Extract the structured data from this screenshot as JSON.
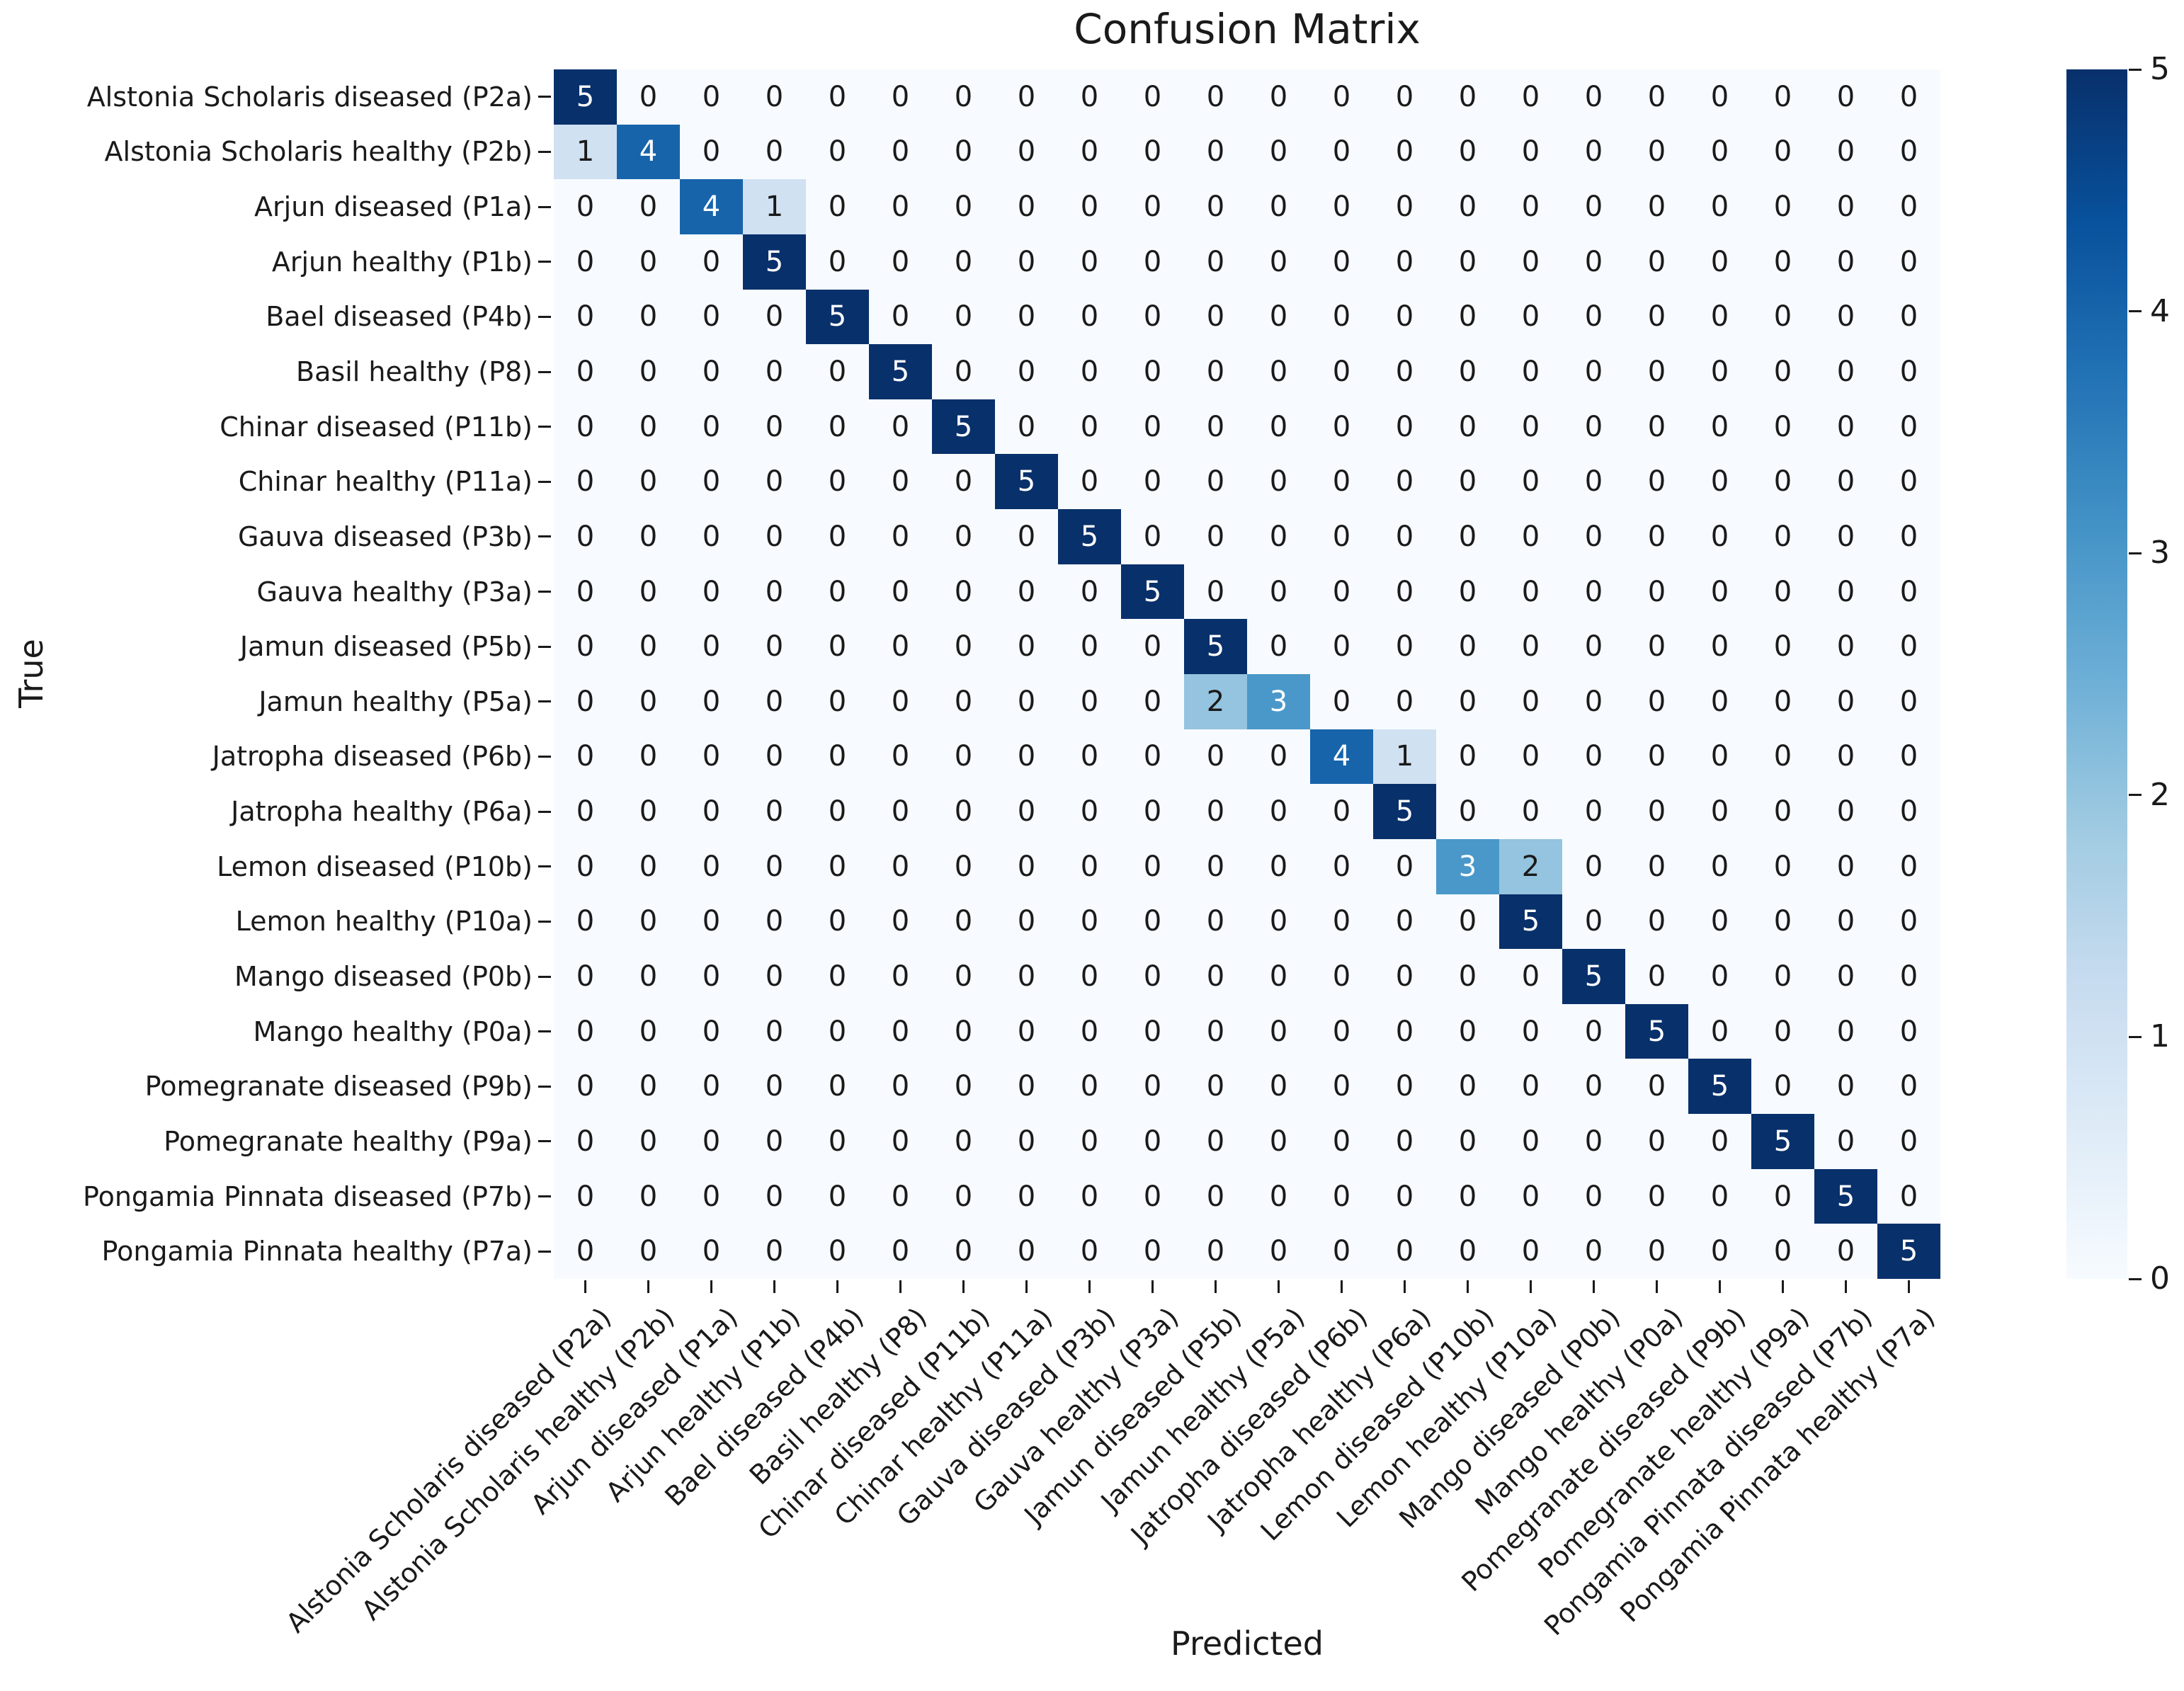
{
  "chart_data": {
    "type": "heatmap",
    "title": "Confusion Matrix",
    "xlabel": "Predicted",
    "ylabel": "True",
    "x_categories": [
      "Alstonia Scholaris diseased (P2a)",
      "Alstonia Scholaris healthy (P2b)",
      "Arjun diseased (P1a)",
      "Arjun healthy (P1b)",
      "Bael diseased (P4b)",
      "Basil healthy (P8)",
      "Chinar diseased (P11b)",
      "Chinar healthy (P11a)",
      "Gauva diseased (P3b)",
      "Gauva healthy (P3a)",
      "Jamun diseased (P5b)",
      "Jamun healthy (P5a)",
      "Jatropha diseased (P6b)",
      "Jatropha healthy (P6a)",
      "Lemon diseased (P10b)",
      "Lemon healthy (P10a)",
      "Mango diseased (P0b)",
      "Mango healthy (P0a)",
      "Pomegranate diseased (P9b)",
      "Pomegranate healthy (P9a)",
      "Pongamia Pinnata diseased (P7b)",
      "Pongamia Pinnata healthy (P7a)"
    ],
    "y_categories": [
      "Alstonia Scholaris diseased (P2a)",
      "Alstonia Scholaris healthy (P2b)",
      "Arjun diseased (P1a)",
      "Arjun healthy (P1b)",
      "Bael diseased (P4b)",
      "Basil healthy (P8)",
      "Chinar diseased (P11b)",
      "Chinar healthy (P11a)",
      "Gauva diseased (P3b)",
      "Gauva healthy (P3a)",
      "Jamun diseased (P5b)",
      "Jamun healthy (P5a)",
      "Jatropha diseased (P6b)",
      "Jatropha healthy (P6a)",
      "Lemon diseased (P10b)",
      "Lemon healthy (P10a)",
      "Mango diseased (P0b)",
      "Mango healthy (P0a)",
      "Pomegranate diseased (P9b)",
      "Pomegranate healthy (P9a)",
      "Pongamia Pinnata diseased (P7b)",
      "Pongamia Pinnata healthy (P7a)"
    ],
    "matrix": [
      [
        5,
        0,
        0,
        0,
        0,
        0,
        0,
        0,
        0,
        0,
        0,
        0,
        0,
        0,
        0,
        0,
        0,
        0,
        0,
        0,
        0,
        0
      ],
      [
        1,
        4,
        0,
        0,
        0,
        0,
        0,
        0,
        0,
        0,
        0,
        0,
        0,
        0,
        0,
        0,
        0,
        0,
        0,
        0,
        0,
        0
      ],
      [
        0,
        0,
        4,
        1,
        0,
        0,
        0,
        0,
        0,
        0,
        0,
        0,
        0,
        0,
        0,
        0,
        0,
        0,
        0,
        0,
        0,
        0
      ],
      [
        0,
        0,
        0,
        5,
        0,
        0,
        0,
        0,
        0,
        0,
        0,
        0,
        0,
        0,
        0,
        0,
        0,
        0,
        0,
        0,
        0,
        0
      ],
      [
        0,
        0,
        0,
        0,
        5,
        0,
        0,
        0,
        0,
        0,
        0,
        0,
        0,
        0,
        0,
        0,
        0,
        0,
        0,
        0,
        0,
        0
      ],
      [
        0,
        0,
        0,
        0,
        0,
        5,
        0,
        0,
        0,
        0,
        0,
        0,
        0,
        0,
        0,
        0,
        0,
        0,
        0,
        0,
        0,
        0
      ],
      [
        0,
        0,
        0,
        0,
        0,
        0,
        5,
        0,
        0,
        0,
        0,
        0,
        0,
        0,
        0,
        0,
        0,
        0,
        0,
        0,
        0,
        0
      ],
      [
        0,
        0,
        0,
        0,
        0,
        0,
        0,
        5,
        0,
        0,
        0,
        0,
        0,
        0,
        0,
        0,
        0,
        0,
        0,
        0,
        0,
        0
      ],
      [
        0,
        0,
        0,
        0,
        0,
        0,
        0,
        0,
        5,
        0,
        0,
        0,
        0,
        0,
        0,
        0,
        0,
        0,
        0,
        0,
        0,
        0
      ],
      [
        0,
        0,
        0,
        0,
        0,
        0,
        0,
        0,
        0,
        5,
        0,
        0,
        0,
        0,
        0,
        0,
        0,
        0,
        0,
        0,
        0,
        0
      ],
      [
        0,
        0,
        0,
        0,
        0,
        0,
        0,
        0,
        0,
        0,
        5,
        0,
        0,
        0,
        0,
        0,
        0,
        0,
        0,
        0,
        0,
        0
      ],
      [
        0,
        0,
        0,
        0,
        0,
        0,
        0,
        0,
        0,
        0,
        2,
        3,
        0,
        0,
        0,
        0,
        0,
        0,
        0,
        0,
        0,
        0
      ],
      [
        0,
        0,
        0,
        0,
        0,
        0,
        0,
        0,
        0,
        0,
        0,
        0,
        4,
        1,
        0,
        0,
        0,
        0,
        0,
        0,
        0,
        0
      ],
      [
        0,
        0,
        0,
        0,
        0,
        0,
        0,
        0,
        0,
        0,
        0,
        0,
        0,
        5,
        0,
        0,
        0,
        0,
        0,
        0,
        0,
        0
      ],
      [
        0,
        0,
        0,
        0,
        0,
        0,
        0,
        0,
        0,
        0,
        0,
        0,
        0,
        0,
        3,
        2,
        0,
        0,
        0,
        0,
        0,
        0
      ],
      [
        0,
        0,
        0,
        0,
        0,
        0,
        0,
        0,
        0,
        0,
        0,
        0,
        0,
        0,
        0,
        5,
        0,
        0,
        0,
        0,
        0,
        0
      ],
      [
        0,
        0,
        0,
        0,
        0,
        0,
        0,
        0,
        0,
        0,
        0,
        0,
        0,
        0,
        0,
        0,
        5,
        0,
        0,
        0,
        0,
        0
      ],
      [
        0,
        0,
        0,
        0,
        0,
        0,
        0,
        0,
        0,
        0,
        0,
        0,
        0,
        0,
        0,
        0,
        0,
        5,
        0,
        0,
        0,
        0
      ],
      [
        0,
        0,
        0,
        0,
        0,
        0,
        0,
        0,
        0,
        0,
        0,
        0,
        0,
        0,
        0,
        0,
        0,
        0,
        5,
        0,
        0,
        0
      ],
      [
        0,
        0,
        0,
        0,
        0,
        0,
        0,
        0,
        0,
        0,
        0,
        0,
        0,
        0,
        0,
        0,
        0,
        0,
        0,
        5,
        0,
        0
      ],
      [
        0,
        0,
        0,
        0,
        0,
        0,
        0,
        0,
        0,
        0,
        0,
        0,
        0,
        0,
        0,
        0,
        0,
        0,
        0,
        0,
        5,
        0
      ],
      [
        0,
        0,
        0,
        0,
        0,
        0,
        0,
        0,
        0,
        0,
        0,
        0,
        0,
        0,
        0,
        0,
        0,
        0,
        0,
        0,
        0,
        5
      ]
    ],
    "vmin": 0,
    "vmax": 5,
    "colorbar_ticks": [
      0,
      1,
      2,
      3,
      4,
      5
    ],
    "colorbar_position": "right",
    "grid": false,
    "colormap": {
      "name": "Blues",
      "stops": [
        "#f7fbff",
        "#deebf7",
        "#c6dbef",
        "#9ecae1",
        "#6baed6",
        "#4292c6",
        "#2171b5",
        "#08519c",
        "#08306b"
      ]
    },
    "annotation_colors": {
      "dark_text": "#1a1a1a",
      "light_text": "#ffffff",
      "white_text_threshold": 2.5
    }
  }
}
